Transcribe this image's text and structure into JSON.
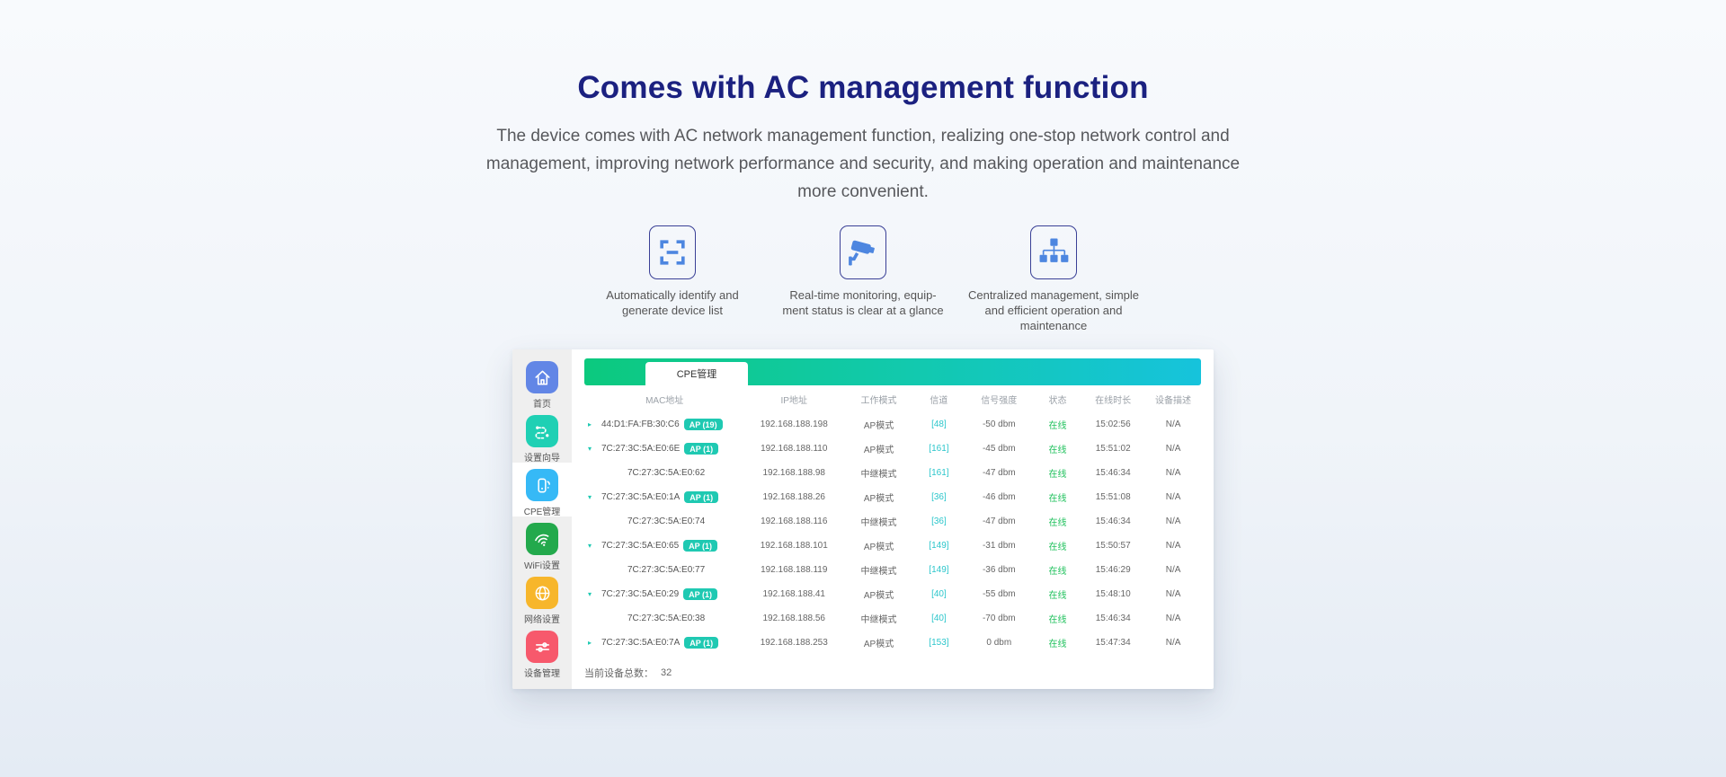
{
  "hero": {
    "title": "Comes with AC management function",
    "description_lines": [
      "The device comes with AC network management function, realizing one-stop network control and",
      "management, improving network performance and security, and making operation and maintenance",
      "more convenient."
    ]
  },
  "features": [
    {
      "icon": "scan-frame-icon",
      "caption_lines": [
        "Automatically identify and",
        "generate device list"
      ]
    },
    {
      "icon": "cctv-camera-icon",
      "caption_lines": [
        "Real-time monitoring, equip-",
        "ment status is clear at a glance"
      ]
    },
    {
      "icon": "hierarchy-icon",
      "caption_lines": [
        "Centralized management, simple",
        "and efficient operation and",
        "maintenance"
      ]
    }
  ],
  "app": {
    "tab_label": "CPE管理",
    "sidebar": [
      {
        "label": "首页",
        "icon": "home-icon",
        "color": "#6286e6",
        "active": false
      },
      {
        "label": "设置向导",
        "icon": "route-wizard-icon",
        "color": "#1fd0b4",
        "active": false
      },
      {
        "label": "CPE管理",
        "icon": "cpe-device-icon",
        "color": "#36b9f6",
        "active": true
      },
      {
        "label": "WiFi设置",
        "icon": "wifi-icon",
        "color": "#23a94c",
        "active": false
      },
      {
        "label": "网络设置",
        "icon": "globe-icon",
        "color": "#f7b62b",
        "active": false
      },
      {
        "label": "设备管理",
        "icon": "sliders-icon",
        "color": "#f7596c",
        "active": false
      }
    ],
    "table": {
      "columns": [
        "MAC地址",
        "IP地址",
        "工作模式",
        "信道",
        "信号强度",
        "状态",
        "在线时长",
        "设备描述"
      ],
      "rows": [
        {
          "expand": "collapsed",
          "mac": "44:D1:FA:FB:30:C6",
          "badge": "AP (19)",
          "ip": "192.168.188.198",
          "mode": "AP模式",
          "channel": "[48]",
          "signal": "-50 dbm",
          "status": "在线",
          "online_time": "15:02:56",
          "description": "N/A"
        },
        {
          "expand": "expanded",
          "mac": "7C:27:3C:5A:E0:6E",
          "badge": "AP (1)",
          "ip": "192.168.188.110",
          "mode": "AP模式",
          "channel": "[161]",
          "signal": "-45 dbm",
          "status": "在线",
          "online_time": "15:51:02",
          "description": "N/A"
        },
        {
          "expand": "child",
          "mac": "7C:27:3C:5A:E0:62",
          "badge": "",
          "ip": "192.168.188.98",
          "mode": "中继模式",
          "channel": "[161]",
          "signal": "-47 dbm",
          "status": "在线",
          "online_time": "15:46:34",
          "description": "N/A"
        },
        {
          "expand": "expanded",
          "mac": "7C:27:3C:5A:E0:1A",
          "badge": "AP (1)",
          "ip": "192.168.188.26",
          "mode": "AP模式",
          "channel": "[36]",
          "signal": "-46 dbm",
          "status": "在线",
          "online_time": "15:51:08",
          "description": "N/A"
        },
        {
          "expand": "child",
          "mac": "7C:27:3C:5A:E0:74",
          "badge": "",
          "ip": "192.168.188.116",
          "mode": "中继模式",
          "channel": "[36]",
          "signal": "-47 dbm",
          "status": "在线",
          "online_time": "15:46:34",
          "description": "N/A"
        },
        {
          "expand": "expanded",
          "mac": "7C:27:3C:5A:E0:65",
          "badge": "AP (1)",
          "ip": "192.168.188.101",
          "mode": "AP模式",
          "channel": "[149]",
          "signal": "-31 dbm",
          "status": "在线",
          "online_time": "15:50:57",
          "description": "N/A"
        },
        {
          "expand": "child",
          "mac": "7C:27:3C:5A:E0:77",
          "badge": "",
          "ip": "192.168.188.119",
          "mode": "中继模式",
          "channel": "[149]",
          "signal": "-36 dbm",
          "status": "在线",
          "online_time": "15:46:29",
          "description": "N/A"
        },
        {
          "expand": "expanded",
          "mac": "7C:27:3C:5A:E0:29",
          "badge": "AP (1)",
          "ip": "192.168.188.41",
          "mode": "AP模式",
          "channel": "[40]",
          "signal": "-55 dbm",
          "status": "在线",
          "online_time": "15:48:10",
          "description": "N/A"
        },
        {
          "expand": "child",
          "mac": "7C:27:3C:5A:E0:38",
          "badge": "",
          "ip": "192.168.188.56",
          "mode": "中继模式",
          "channel": "[40]",
          "signal": "-70 dbm",
          "status": "在线",
          "online_time": "15:46:34",
          "description": "N/A"
        },
        {
          "expand": "collapsed",
          "mac": "7C:27:3C:5A:E0:7A",
          "badge": "AP (1)",
          "ip": "192.168.188.253",
          "mode": "AP模式",
          "channel": "[153]",
          "signal": "0 dbm",
          "status": "在线",
          "online_time": "15:47:34",
          "description": "N/A"
        }
      ]
    },
    "footer": {
      "label": "当前设备总数：",
      "value": "32"
    }
  },
  "colors": {
    "title_navy": "#1b2180",
    "feature_icon_blue": "#4d86e0",
    "accent_teal": "#1fc9b2",
    "channel_cyan": "#2bc6cb",
    "status_green": "#1fc15c",
    "header_gradient_start": "#0cc97e",
    "header_gradient_end": "#16c3dc"
  }
}
